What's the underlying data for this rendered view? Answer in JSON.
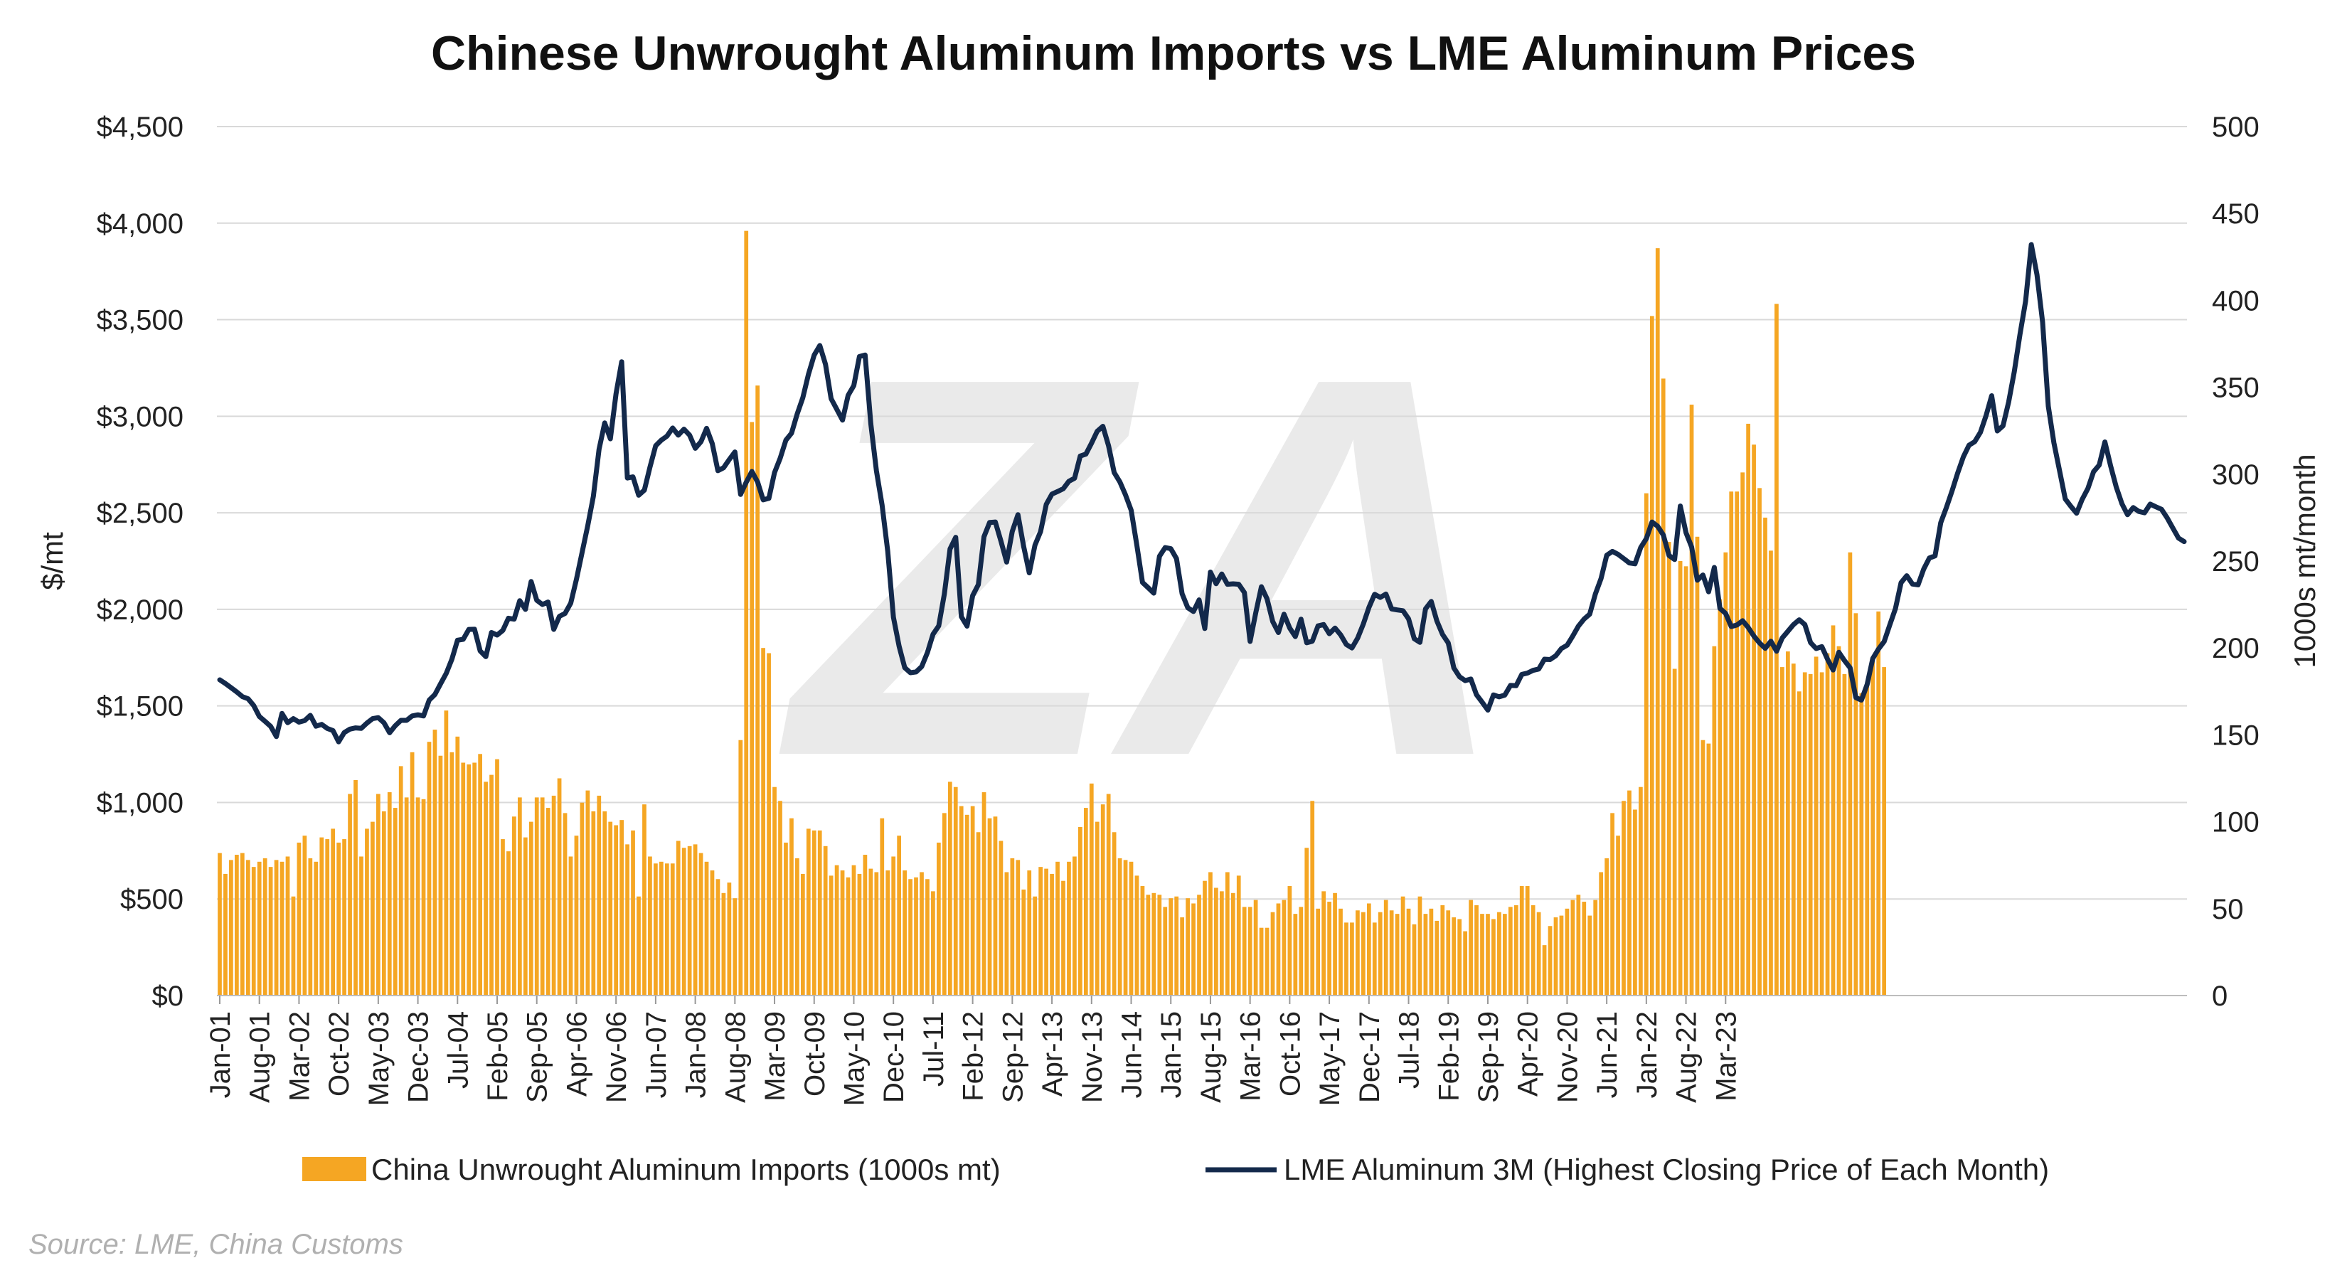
{
  "chart_data": {
    "type": "bar+line",
    "title": "Chinese Unwrought Aluminum Imports vs LME Aluminum Prices",
    "ylabel_left": "$/mt",
    "ylabel_right": "1000s mt/month",
    "ylim_left": [
      0,
      4500
    ],
    "ylim_right": [
      0,
      500
    ],
    "left_ticks": [
      "$0",
      "$500",
      "$1,000",
      "$1,500",
      "$2,000",
      "$2,500",
      "$3,000",
      "$3,500",
      "$4,000",
      "$4,500"
    ],
    "right_ticks": [
      "0",
      "50",
      "100",
      "150",
      "200",
      "250",
      "300",
      "350",
      "400",
      "450",
      "500"
    ],
    "x_start": "Jan-01",
    "x_labels": [
      "Jan-01",
      "Aug-01",
      "Mar-02",
      "Oct-02",
      "May-03",
      "Dec-03",
      "Jul-04",
      "Feb-05",
      "Sep-05",
      "Apr-06",
      "Nov-06",
      "Jun-07",
      "Jan-08",
      "Aug-08",
      "Mar-09",
      "Oct-09",
      "May-10",
      "Dec-10",
      "Jul-11",
      "Feb-12",
      "Sep-12",
      "Apr-13",
      "Nov-13",
      "Jun-14",
      "Jan-15",
      "Aug-15",
      "Mar-16",
      "Oct-16",
      "May-17",
      "Dec-17",
      "Jul-18",
      "Feb-19",
      "Sep-19",
      "Apr-20",
      "Nov-20",
      "Jun-21",
      "Jan-22",
      "Aug-22",
      "Mar-23"
    ],
    "grid": true,
    "legend_position": "bottom",
    "colors": {
      "bars": "#f5a623",
      "line": "#13294b",
      "grid": "#d9d9d9",
      "watermark": "#e6e6e6"
    },
    "series": [
      {
        "name": "China Unwrought Aluminum Imports (1000s mt)",
        "type": "bar",
        "axis": "right",
        "values": [
          82,
          70,
          78,
          81,
          82,
          78,
          74,
          77,
          79,
          74,
          78,
          77,
          80,
          57,
          88,
          92,
          79,
          77,
          91,
          90,
          96,
          88,
          90,
          116,
          124,
          80,
          96,
          100,
          116,
          106,
          117,
          108,
          132,
          114,
          140,
          114,
          113,
          146,
          153,
          138,
          164,
          140,
          149,
          134,
          133,
          134,
          139,
          123,
          127,
          136,
          90,
          83,
          103,
          114,
          91,
          100,
          114,
          114,
          108,
          115,
          125,
          105,
          80,
          92,
          111,
          118,
          106,
          115,
          106,
          100,
          98,
          101,
          87,
          95,
          57,
          110,
          80,
          76,
          77,
          76,
          76,
          89,
          85,
          86,
          87,
          82,
          77,
          72,
          67,
          59,
          65,
          56,
          147,
          440,
          330,
          351,
          200,
          197,
          120,
          112,
          88,
          102,
          79,
          70,
          96,
          95,
          95,
          86,
          69,
          75,
          72,
          68,
          75,
          70,
          81,
          73,
          71,
          102,
          72,
          80,
          92,
          72,
          67,
          68,
          71,
          67,
          60,
          88,
          105,
          123,
          120,
          109,
          104,
          109,
          94,
          117,
          102,
          103,
          89,
          71,
          79,
          78,
          61,
          72,
          57,
          74,
          73,
          70,
          77,
          66,
          77,
          80,
          97,
          108,
          122,
          100,
          110,
          116,
          94,
          79,
          78,
          77,
          69,
          63,
          58,
          59,
          58,
          51,
          56,
          57,
          45,
          56,
          53,
          58,
          66,
          71,
          62,
          60,
          71,
          59,
          69,
          51,
          51,
          55,
          39,
          39,
          48,
          53,
          55,
          63,
          47,
          51,
          85,
          112,
          50,
          60,
          54,
          59,
          50,
          42,
          42,
          49,
          48,
          53,
          42,
          48,
          55,
          49,
          47,
          57,
          50,
          41,
          57,
          47,
          50,
          43,
          52,
          49,
          45,
          44,
          37,
          55,
          52,
          47,
          47,
          44,
          48,
          47,
          51,
          52,
          63,
          63,
          52,
          48,
          29,
          40,
          45,
          46,
          50,
          55,
          58,
          54,
          46,
          55,
          71,
          79,
          105,
          92,
          112,
          118,
          107,
          120,
          289,
          391,
          430,
          355,
          261,
          188,
          250,
          247,
          340,
          264,
          147,
          145,
          201,
          228,
          255,
          290,
          290,
          301,
          329,
          317,
          292,
          275,
          256,
          398,
          189,
          198,
          191,
          175,
          186,
          185,
          195,
          186,
          197,
          213,
          201,
          185,
          255,
          220,
          174,
          179,
          195,
          221,
          189
        ]
      },
      {
        "name": "LME Aluminum 3M (Highest Closing Price of Each Month)",
        "type": "line",
        "axis": "left",
        "values": [
          1635,
          1616,
          1594,
          1572,
          1548,
          1537,
          1502,
          1445,
          1420,
          1394,
          1341,
          1461,
          1413,
          1434,
          1416,
          1424,
          1451,
          1395,
          1404,
          1383,
          1372,
          1314,
          1362,
          1380,
          1386,
          1384,
          1411,
          1434,
          1439,
          1413,
          1361,
          1397,
          1425,
          1425,
          1448,
          1454,
          1448,
          1530,
          1559,
          1614,
          1668,
          1741,
          1840,
          1845,
          1896,
          1897,
          1785,
          1755,
          1880,
          1867,
          1891,
          1954,
          1949,
          2045,
          2000,
          2144,
          2047,
          2025,
          2038,
          1896,
          1964,
          1979,
          2032,
          2154,
          2294,
          2433,
          2585,
          2829,
          2965,
          2883,
          3117,
          3282,
          2680,
          2686,
          2591,
          2617,
          2737,
          2847,
          2876,
          2897,
          2939,
          2902,
          2933,
          2902,
          2834,
          2868,
          2937,
          2858,
          2718,
          2733,
          2776,
          2815,
          2595,
          2658,
          2714,
          2660,
          2567,
          2575,
          2708,
          2783,
          2876,
          2912,
          3012,
          3096,
          3218,
          3317,
          3366,
          3269,
          3091,
          3036,
          2980,
          3108,
          3159,
          3309,
          3317,
          2961,
          2717,
          2539,
          2301,
          1959,
          1809,
          1698,
          1672,
          1676,
          1704,
          1776,
          1871,
          1914,
          2079,
          2313,
          2373,
          1962,
          1913,
          2071,
          2128,
          2376,
          2450,
          2452,
          2353,
          2245,
          2404,
          2490,
          2326,
          2189,
          2332,
          2403,
          2544,
          2597,
          2610,
          2625,
          2663,
          2679,
          2794,
          2804,
          2861,
          2922,
          2948,
          2847,
          2708,
          2660,
          2593,
          2513,
          2331,
          2139,
          2112,
          2084,
          2275,
          2320,
          2314,
          2263,
          2081,
          2008,
          1989,
          2049,
          1901,
          2193,
          2133,
          2183,
          2130,
          2132,
          2130,
          2087,
          1834,
          1981,
          2117,
          2055,
          1937,
          1880,
          1975,
          1903,
          1859,
          1949,
          1827,
          1835,
          1914,
          1921,
          1874,
          1903,
          1868,
          1818,
          1800,
          1851,
          1924,
          2010,
          2078,
          2062,
          2079,
          2002,
          1997,
          1993,
          1951,
          1848,
          1829,
          2003,
          2041,
          1940,
          1870,
          1826,
          1696,
          1651,
          1631,
          1639,
          1558,
          1519,
          1478,
          1557,
          1547,
          1556,
          1606,
          1605,
          1663,
          1670,
          1684,
          1691,
          1742,
          1740,
          1760,
          1797,
          1814,
          1862,
          1913,
          1950,
          1975,
          2080,
          2160,
          2280,
          2300,
          2285,
          2263,
          2240,
          2236,
          2320,
          2366,
          2452,
          2430,
          2385,
          2279,
          2258,
          2535,
          2397,
          2323,
          2151,
          2178,
          2091,
          2217,
          2005,
          1979,
          1911,
          1919,
          1941,
          1906,
          1861,
          1826,
          1798,
          1835,
          1783,
          1852,
          1886,
          1921,
          1946,
          1921,
          1828,
          1797,
          1807,
          1742,
          1686,
          1778,
          1735,
          1697,
          1543,
          1530,
          1611,
          1745,
          1794,
          1833,
          1919,
          2004,
          2138,
          2174,
          2131,
          2127,
          2209,
          2266,
          2277,
          2449,
          2527,
          2614,
          2706,
          2790,
          2850,
          2868,
          2916,
          3002,
          3106,
          2924,
          2950,
          3074,
          3231,
          3424,
          3596,
          3889,
          3733,
          3487,
          3052,
          2862,
          2717,
          2571,
          2533,
          2498,
          2570,
          2626,
          2713,
          2747,
          2867,
          2745,
          2634,
          2547,
          2490,
          2527,
          2507,
          2500,
          2545,
          2531,
          2518,
          2474,
          2421,
          2369,
          2351
        ]
      }
    ]
  },
  "watermark": "ZA",
  "source_note": "Source: LME, China Customs"
}
